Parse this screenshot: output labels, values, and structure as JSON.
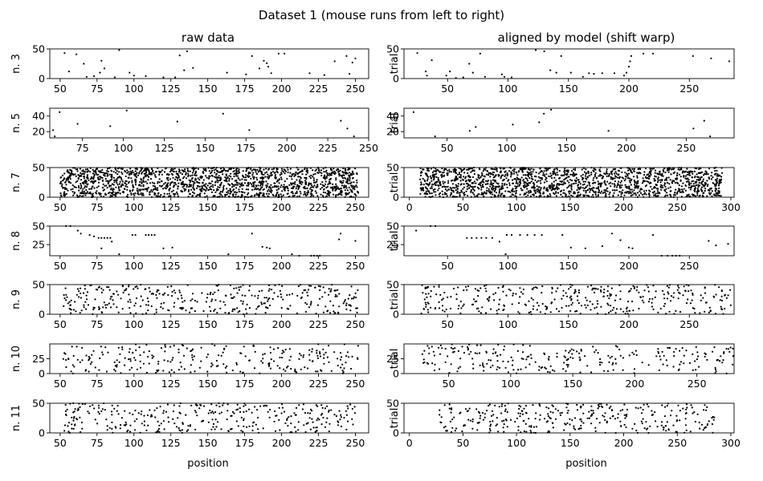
{
  "figure": {
    "title": "Dataset 1 (mouse runs from left to right)",
    "left_title": "raw data",
    "right_title": "aligned by model (shift warp)",
    "xlabel": "position"
  },
  "chart_data": {
    "type": "scatter",
    "title": "Dataset 1 (mouse runs from left to right)",
    "note_marks": "black dot raster; points listed are representative readings of spike positions per trial",
    "columns": [
      {
        "title": "raw data",
        "xlabel": "position",
        "panels": [
          {
            "ylabel": "n. 3",
            "xlim": [
              43,
              259
            ],
            "ylim": [
              0,
              50
            ],
            "xticks": [
              50,
              75,
              100,
              125,
              150,
              175,
              200,
              225,
              250
            ],
            "yticks": [
              0,
              50
            ],
            "points": [
              [
                53,
                43
              ],
              [
                56,
                12
              ],
              [
                61,
                41
              ],
              [
                66,
                25
              ],
              [
                68,
                3
              ],
              [
                73,
                4
              ],
              [
                77,
                10
              ],
              [
                78,
                30
              ],
              [
                80,
                17
              ],
              [
                87,
                2
              ],
              [
                90,
                48
              ],
              [
                97,
                10
              ],
              [
                100,
                5
              ],
              [
                108,
                4
              ],
              [
                120,
                2
              ],
              [
                128,
                2
              ],
              [
                131,
                39
              ],
              [
                134,
                14
              ],
              [
                136,
                46
              ],
              [
                140,
                18
              ],
              [
                163,
                10
              ],
              [
                176,
                7
              ],
              [
                180,
                38
              ],
              [
                185,
                17
              ],
              [
                188,
                30
              ],
              [
                190,
                26
              ],
              [
                191,
                20
              ],
              [
                193,
                9
              ],
              [
                198,
                42
              ],
              [
                202,
                42
              ],
              [
                219,
                9
              ],
              [
                229,
                6
              ],
              [
                236,
                29
              ],
              [
                244,
                38
              ],
              [
                246,
                8
              ],
              [
                248,
                27
              ],
              [
                250,
                34
              ]
            ]
          },
          {
            "ylabel": "n. 5",
            "xlim": [
              55,
              250
            ],
            "ylim": [
              12,
              50
            ],
            "xticks": [
              50,
              75,
              100,
              125,
              150,
              175,
              200,
              225,
              250
            ],
            "yticks": [
              20,
              40
            ],
            "points": [
              [
                57,
                22
              ],
              [
                58,
                14
              ],
              [
                61,
                45
              ],
              [
                72,
                30
              ],
              [
                92,
                27
              ],
              [
                102,
                47
              ],
              [
                133,
                33
              ],
              [
                161,
                43
              ],
              [
                177,
                22
              ],
              [
                233,
                34
              ],
              [
                237,
                24
              ],
              [
                241,
                14
              ]
            ]
          },
          {
            "ylabel": "n. 7",
            "xlim": [
              43,
              259
            ],
            "ylim": [
              0,
              50
            ],
            "xticks": [
              50,
              75,
              100,
              125,
              150,
              175,
              200,
              225,
              250
            ],
            "yticks": [
              0,
              50
            ],
            "dense_x": [
              50,
              252
            ],
            "dense_count": 1700
          },
          {
            "ylabel": "n. 8",
            "xlim": [
              43,
              259
            ],
            "ylim": [
              10,
              50
            ],
            "xticks": [
              50,
              75,
              100,
              125,
              150,
              175,
              200,
              225,
              250
            ],
            "yticks": [
              25,
              50
            ],
            "points": [
              [
                54,
                50
              ],
              [
                57,
                50
              ],
              [
                62,
                44
              ],
              [
                64,
                40
              ],
              [
                70,
                38
              ],
              [
                73,
                36
              ],
              [
                76,
                34
              ],
              [
                78,
                34
              ],
              [
                80,
                34
              ],
              [
                82,
                34
              ],
              [
                84,
                34
              ],
              [
                85,
                29
              ],
              [
                78,
                20
              ],
              [
                90,
                12
              ],
              [
                99,
                38
              ],
              [
                101,
                38
              ],
              [
                108,
                38
              ],
              [
                110,
                38
              ],
              [
                112,
                38
              ],
              [
                114,
                38
              ],
              [
                120,
                20
              ],
              [
                126,
                21
              ],
              [
                164,
                12
              ],
              [
                180,
                40
              ],
              [
                187,
                22
              ],
              [
                190,
                21
              ],
              [
                192,
                20
              ],
              [
                207,
                12
              ],
              [
                212,
                10
              ],
              [
                220,
                10
              ],
              [
                222,
                10
              ],
              [
                224,
                10
              ],
              [
                226,
                10
              ],
              [
                239,
                32
              ],
              [
                240,
                40
              ],
              [
                250,
                30
              ]
            ]
          },
          {
            "ylabel": "n. 9",
            "xlim": [
              43,
              259
            ],
            "ylim": [
              0,
              50
            ],
            "xticks": [
              50,
              75,
              100,
              125,
              150,
              175,
              200,
              225,
              250
            ],
            "yticks": [
              0,
              50
            ],
            "sparse_count": 360
          },
          {
            "ylabel": "n. 10",
            "xlim": [
              43,
              259
            ],
            "ylim": [
              0,
              50
            ],
            "xticks": [
              50,
              75,
              100,
              125,
              150,
              175,
              200,
              225,
              250
            ],
            "yticks": [
              0,
              25
            ],
            "sparse_count": 260
          },
          {
            "ylabel": "n. 11",
            "xlim": [
              43,
              259
            ],
            "ylim": [
              0,
              50
            ],
            "xticks": [
              50,
              75,
              100,
              125,
              150,
              175,
              200,
              225,
              250
            ],
            "yticks": [
              0,
              50
            ],
            "sparse_count": 330
          }
        ]
      },
      {
        "title": "aligned by model (shift warp)",
        "xlabel": "position",
        "panels": [
          {
            "ylabel": "trial",
            "xlim": [
              14,
              287
            ],
            "ylim": [
              0,
              50
            ],
            "xticks": [
              50,
              100,
              150,
              200,
              250
            ],
            "yticks": [
              0,
              50
            ],
            "points": [
              [
                25,
                43
              ],
              [
                32,
                12
              ],
              [
                33,
                5
              ],
              [
                37,
                31
              ],
              [
                49,
                5
              ],
              [
                52,
                12
              ],
              [
                57,
                1
              ],
              [
                63,
                2
              ],
              [
                68,
                25
              ],
              [
                71,
                10
              ],
              [
                77,
                42
              ],
              [
                81,
                3
              ],
              [
                95,
                7
              ],
              [
                97,
                3
              ],
              [
                103,
                2
              ],
              [
                123,
                48
              ],
              [
                130,
                46
              ],
              [
                135,
                14
              ],
              [
                140,
                10
              ],
              [
                144,
                38
              ],
              [
                152,
                10
              ],
              [
                162,
                3
              ],
              [
                167,
                9
              ],
              [
                171,
                8
              ],
              [
                178,
                9
              ],
              [
                188,
                9
              ],
              [
                196,
                5
              ],
              [
                198,
                10
              ],
              [
                200,
                20
              ],
              [
                201,
                29
              ],
              [
                202,
                38
              ],
              [
                212,
                42
              ],
              [
                220,
                42
              ],
              [
                253,
                38
              ],
              [
                268,
                34
              ],
              [
                283,
                29
              ]
            ]
          },
          {
            "ylabel": "trial",
            "xlim": [
              14,
              290
            ],
            "ylim": [
              12,
              50
            ],
            "xticks": [
              50,
              100,
              150,
              200,
              250
            ],
            "yticks": [
              20,
              40
            ],
            "points": [
              [
                22,
                45
              ],
              [
                40,
                14
              ],
              [
                69,
                21
              ],
              [
                74,
                26
              ],
              [
                105,
                29
              ],
              [
                127,
                32
              ],
              [
                131,
                43
              ],
              [
                137,
                48
              ],
              [
                185,
                21
              ],
              [
                256,
                24
              ],
              [
                265,
                34
              ],
              [
                270,
                14
              ]
            ]
          },
          {
            "ylabel": "trial",
            "xlim": [
              -5,
              303
            ],
            "ylim": [
              0,
              50
            ],
            "xticks": [
              0,
              50,
              100,
              150,
              200,
              250,
              300
            ],
            "yticks": [
              0,
              50
            ],
            "dense_x": [
              10,
              292
            ],
            "dense_count": 1700
          },
          {
            "ylabel": "trial",
            "xlim": [
              14,
              287
            ],
            "ylim": [
              10,
              50
            ],
            "xticks": [
              50,
              100,
              150,
              200,
              250
            ],
            "yticks": [
              25,
              50
            ],
            "points": [
              [
                24,
                44
              ],
              [
                36,
                50
              ],
              [
                40,
                50
              ],
              [
                66,
                34
              ],
              [
                70,
                34
              ],
              [
                74,
                34
              ],
              [
                78,
                34
              ],
              [
                82,
                34
              ],
              [
                87,
                34
              ],
              [
                93,
                29
              ],
              [
                98,
                12
              ],
              [
                99,
                38
              ],
              [
                103,
                38
              ],
              [
                110,
                38
              ],
              [
                116,
                38
              ],
              [
                122,
                38
              ],
              [
                128,
                38
              ],
              [
                145,
                38
              ],
              [
                152,
                21
              ],
              [
                164,
                20
              ],
              [
                178,
                23
              ],
              [
                186,
                40
              ],
              [
                193,
                31
              ],
              [
                200,
                21
              ],
              [
                203,
                20
              ],
              [
                220,
                38
              ],
              [
                227,
                10
              ],
              [
                232,
                10
              ],
              [
                236,
                10
              ],
              [
                239,
                10
              ],
              [
                242,
                10
              ],
              [
                266,
                30
              ],
              [
                272,
                24
              ],
              [
                282,
                26
              ]
            ]
          },
          {
            "ylabel": "trial",
            "xlim": [
              14,
              287
            ],
            "ylim": [
              0,
              50
            ],
            "xticks": [
              50,
              100,
              150,
              200,
              250
            ],
            "yticks": [
              0,
              50
            ],
            "sparse_count": 360
          },
          {
            "ylabel": "trial",
            "xlim": [
              14,
              280
            ],
            "ylim": [
              0,
              50
            ],
            "xticks": [
              50,
              100,
              150,
              200,
              250
            ],
            "yticks": [
              0,
              25
            ],
            "sparse_count": 260
          },
          {
            "ylabel": "trial",
            "xlim": [
              -5,
              303
            ],
            "ylim": [
              0,
              50
            ],
            "xticks": [
              0,
              50,
              100,
              150,
              200,
              250,
              300
            ],
            "yticks": [
              0,
              50
            ],
            "sparse_count": 330
          }
        ]
      }
    ]
  }
}
